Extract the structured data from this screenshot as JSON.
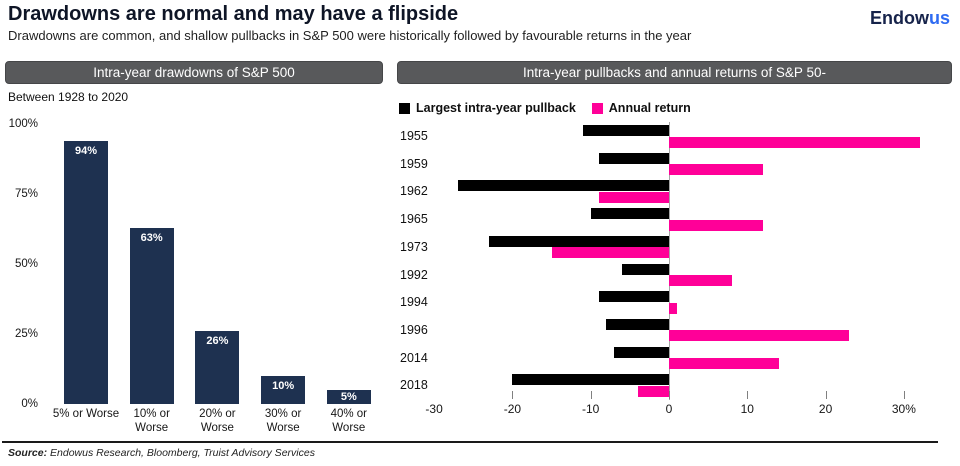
{
  "header": {
    "title": "Drawdowns are normal and may have a flipside",
    "subtitle": "Drawdowns are common, and shallow pullbacks in S&P 500 were historically followed by favourable returns in the year",
    "logo": {
      "part1": "Endow",
      "part2": "us"
    }
  },
  "colors": {
    "navy_bar": "#1e3150",
    "black_bar": "#000000",
    "pink_bar": "#ff0098",
    "banner_bg": "#58595b",
    "logo_navy": "#16234a",
    "logo_blue": "#2e6bf2",
    "zero_line": "#a6a6a6",
    "tick": "#808080"
  },
  "footer": {
    "source_label": "Source:",
    "source_text": " Endowus Research, Bloomberg, Truist Advisory Services"
  },
  "chart_data": [
    {
      "type": "bar",
      "title": "Intra-year drawdowns of S&P 500",
      "subtitle": "Between 1928 to 2020",
      "categories": [
        "5% or Worse",
        "10% or Worse",
        "20% or Worse",
        "30% or Worse",
        "40% or Worse"
      ],
      "category_display": [
        "5% or Worse",
        "10% or\nWorse",
        "20% or\nWorse",
        "30% or\nWorse",
        "40% or\nWorse"
      ],
      "values": [
        94,
        63,
        26,
        10,
        5
      ],
      "value_labels": [
        "94%",
        "63%",
        "26%",
        "10%",
        "5%"
      ],
      "xlabel": "",
      "ylabel": "",
      "ylim": [
        0,
        100
      ],
      "ytick_values": [
        0,
        25,
        50,
        75,
        100
      ],
      "ytick_labels": [
        "0%",
        "25%",
        "50%",
        "75%",
        "100%"
      ],
      "grid": false,
      "bar_color": "#1e3150"
    },
    {
      "type": "bar",
      "orientation": "horizontal",
      "title": "Intra-year pullbacks and annual returns of S&P 50-",
      "categories": [
        "1955",
        "1959",
        "1962",
        "1965",
        "1973",
        "1992",
        "1994",
        "1996",
        "2014",
        "2018"
      ],
      "series": [
        {
          "name": "Largest intra-year pullback",
          "color": "#000000",
          "values": [
            -11,
            -9,
            -27,
            -10,
            -23,
            -6,
            -9,
            -8,
            -7,
            -20
          ]
        },
        {
          "name": "Annual return",
          "color": "#ff0098",
          "values": [
            32,
            12,
            -9,
            12,
            -15,
            8,
            1,
            23,
            14,
            -4
          ]
        }
      ],
      "xlim": [
        -30,
        33
      ],
      "xtick_values": [
        -30,
        -20,
        -10,
        0,
        10,
        20,
        30
      ],
      "xtick_labels": [
        "-30",
        "-20",
        "-10",
        "0",
        "10",
        "20",
        "30%"
      ],
      "grid": false,
      "legend_position": "top-left"
    }
  ]
}
